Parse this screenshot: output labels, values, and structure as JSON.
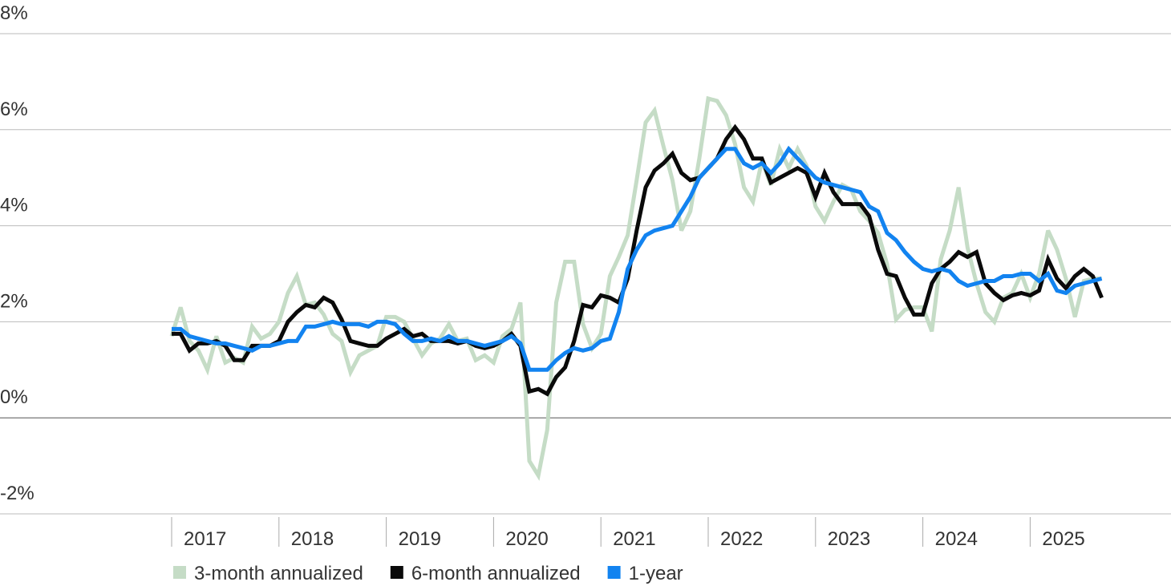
{
  "chart_data": {
    "type": "line",
    "categories": [
      "2017",
      null,
      null,
      null,
      null,
      null,
      null,
      null,
      null,
      null,
      null,
      null,
      "2018",
      null,
      null,
      null,
      null,
      null,
      null,
      null,
      null,
      null,
      null,
      null,
      "2019",
      null,
      null,
      null,
      null,
      null,
      null,
      null,
      null,
      null,
      null,
      null,
      "2020",
      null,
      null,
      null,
      null,
      null,
      null,
      null,
      null,
      null,
      null,
      null,
      "2021",
      null,
      null,
      null,
      null,
      null,
      null,
      null,
      null,
      null,
      null,
      null,
      "2022",
      null,
      null,
      null,
      null,
      null,
      null,
      null,
      null,
      null,
      null,
      null,
      "2023",
      null,
      null,
      null,
      null,
      null,
      null,
      null,
      null,
      null,
      null,
      null,
      "2024",
      null,
      null,
      null,
      null,
      null,
      null,
      null,
      null,
      null,
      null,
      null,
      "2025",
      null,
      null,
      null,
      null,
      null,
      null,
      null,
      null
    ],
    "series": [
      {
        "name": "3-month annualized",
        "color": "#c5dcc6",
        "values": [
          1.7,
          2.3,
          1.6,
          1.4,
          1.0,
          1.7,
          1.15,
          1.25,
          1.15,
          1.9,
          1.65,
          1.75,
          2.0,
          2.6,
          2.95,
          2.35,
          2.4,
          2.15,
          1.75,
          1.6,
          0.95,
          1.3,
          1.4,
          1.5,
          2.1,
          2.1,
          2.0,
          1.65,
          1.3,
          1.55,
          1.65,
          1.95,
          1.6,
          1.65,
          1.2,
          1.3,
          1.15,
          1.7,
          1.85,
          2.4,
          -0.9,
          -1.2,
          -0.25,
          2.4,
          3.25,
          3.25,
          1.95,
          1.45,
          1.75,
          2.95,
          3.35,
          3.8,
          4.95,
          6.15,
          6.4,
          5.65,
          4.95,
          3.9,
          4.3,
          5.4,
          6.65,
          6.6,
          6.3,
          5.7,
          4.8,
          4.5,
          5.35,
          4.85,
          5.6,
          5.2,
          5.6,
          5.25,
          4.4,
          4.1,
          4.5,
          4.85,
          4.75,
          4.3,
          4.1,
          3.85,
          3.2,
          2.05,
          2.25,
          2.3,
          2.3,
          1.8,
          3.3,
          3.9,
          4.8,
          3.55,
          2.8,
          2.2,
          2.0,
          2.5,
          2.6,
          3.0,
          2.5,
          3.0,
          3.9,
          3.5,
          2.9,
          2.1,
          2.85,
          2.9,
          2.9
        ]
      },
      {
        "name": "6-month annualized",
        "color": "#0a0a0a",
        "values": [
          1.75,
          1.75,
          1.4,
          1.55,
          1.55,
          1.6,
          1.5,
          1.2,
          1.2,
          1.5,
          1.5,
          1.5,
          1.6,
          2.0,
          2.2,
          2.35,
          2.3,
          2.5,
          2.4,
          2.05,
          1.6,
          1.55,
          1.5,
          1.5,
          1.65,
          1.75,
          1.85,
          1.7,
          1.75,
          1.6,
          1.6,
          1.6,
          1.55,
          1.6,
          1.5,
          1.45,
          1.5,
          1.6,
          1.75,
          1.5,
          0.55,
          0.6,
          0.5,
          0.85,
          1.05,
          1.6,
          2.35,
          2.3,
          2.55,
          2.5,
          2.4,
          2.9,
          3.9,
          4.8,
          5.15,
          5.3,
          5.5,
          5.1,
          4.95,
          5.0,
          5.2,
          5.4,
          5.8,
          6.05,
          5.8,
          5.4,
          5.4,
          4.9,
          5.0,
          5.1,
          5.2,
          5.1,
          4.6,
          5.1,
          4.7,
          4.45,
          4.45,
          4.45,
          4.2,
          3.5,
          3.0,
          2.95,
          2.5,
          2.15,
          2.15,
          2.8,
          3.1,
          3.25,
          3.45,
          3.35,
          3.45,
          2.8,
          2.6,
          2.45,
          2.55,
          2.6,
          2.55,
          2.65,
          3.3,
          2.9,
          2.7,
          2.95,
          3.1,
          2.95,
          2.5
        ]
      },
      {
        "name": "1-year",
        "color": "#1283f0",
        "values": [
          1.85,
          1.85,
          1.7,
          1.65,
          1.6,
          1.55,
          1.55,
          1.5,
          1.45,
          1.4,
          1.5,
          1.5,
          1.55,
          1.6,
          1.6,
          1.9,
          1.9,
          1.95,
          2.0,
          1.95,
          1.95,
          1.95,
          1.9,
          2.0,
          2.0,
          1.95,
          1.75,
          1.6,
          1.6,
          1.65,
          1.6,
          1.7,
          1.6,
          1.6,
          1.55,
          1.5,
          1.55,
          1.6,
          1.7,
          1.55,
          1.0,
          1.0,
          1.0,
          1.2,
          1.35,
          1.45,
          1.4,
          1.45,
          1.6,
          1.65,
          2.2,
          3.1,
          3.5,
          3.8,
          3.9,
          3.95,
          4.0,
          4.3,
          4.6,
          5.0,
          5.2,
          5.4,
          5.6,
          5.6,
          5.3,
          5.2,
          5.3,
          5.1,
          5.3,
          5.6,
          5.4,
          5.2,
          5.0,
          4.9,
          4.85,
          4.8,
          4.75,
          4.7,
          4.4,
          4.3,
          3.85,
          3.7,
          3.45,
          3.25,
          3.1,
          3.05,
          3.1,
          3.05,
          2.85,
          2.75,
          2.8,
          2.85,
          2.85,
          2.95,
          2.95,
          3.0,
          3.0,
          2.85,
          3.0,
          2.65,
          2.6,
          2.75,
          2.8,
          2.85,
          2.9
        ]
      }
    ],
    "ylim": [
      -2,
      8
    ],
    "yticks": [
      {
        "value": -2,
        "label": "-2%"
      },
      {
        "value": 0,
        "label": "0%"
      },
      {
        "value": 2,
        "label": "2%"
      },
      {
        "value": 4,
        "label": "4%"
      },
      {
        "value": 6,
        "label": "6%"
      },
      {
        "value": 8,
        "label": "8%"
      }
    ],
    "grid": true
  }
}
